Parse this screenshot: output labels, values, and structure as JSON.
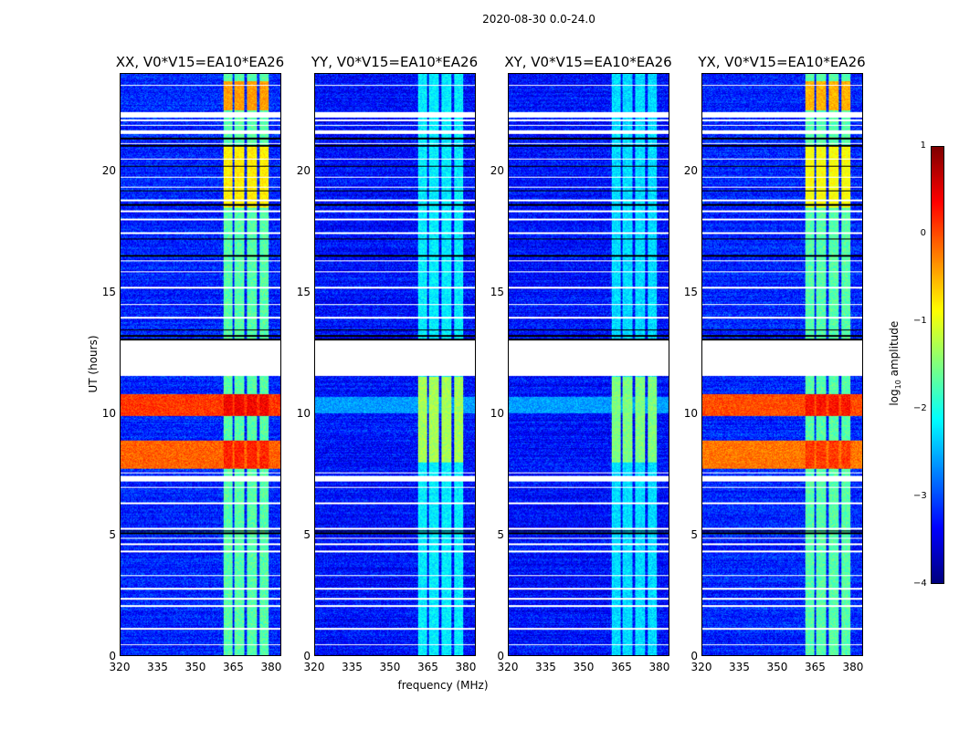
{
  "chart_data": {
    "type": "heatmap",
    "title": "2020-08-30 0.0-24.0",
    "xlabel": "frequency (MHz)",
    "ylabel": "UT (hours)",
    "xlim": [
      320,
      384
    ],
    "ylim": [
      0,
      24
    ],
    "xticks": [
      "320",
      "335",
      "350",
      "365",
      "380"
    ],
    "yticks": [
      "0",
      "5",
      "10",
      "15",
      "20"
    ],
    "colorbar": {
      "label": "log10 amplitude",
      "range": [
        -4,
        1
      ],
      "ticks": [
        "1",
        "0",
        "−1",
        "−2",
        "−3",
        "−4"
      ],
      "colormap": "jet"
    },
    "flagged_ranges_hours": [
      [
        11.55,
        13.0
      ],
      [
        7.2,
        7.4
      ],
      [
        22.2,
        22.45
      ],
      [
        21.55,
        21.7
      ]
    ],
    "flagged_lines_hours": [
      0.45,
      1.1,
      2.05,
      2.35,
      2.75,
      3.3,
      4.3,
      4.6,
      4.85,
      5.25,
      6.3,
      6.95,
      7.55,
      13.95,
      14.5,
      15.2,
      15.85,
      16.3,
      17.45,
      18.0,
      18.35,
      18.8,
      19.35,
      19.75,
      20.5,
      21.15,
      21.9,
      22.1,
      23.55
    ],
    "dark_lines_hours": [
      5.05,
      5.15,
      13.05,
      13.2,
      13.45,
      16.5,
      17.2,
      18.6,
      19.2,
      20.2,
      21.05,
      21.35
    ],
    "rfi_channels_mhz": [
      [
        361,
        364.5
      ],
      [
        365.5,
        369.5
      ],
      [
        370.5,
        374.5
      ],
      [
        375.5,
        379
      ]
    ],
    "panels": [
      {
        "title": "XX, V0*V15=EA10*EA26",
        "base": -3.2,
        "rfi": -1.7,
        "segments": [
          {
            "t": [
              7.7,
              8.9
            ],
            "level": 0.2,
            "broadband": true
          },
          {
            "t": [
              9.9,
              10.8
            ],
            "level": 0.4,
            "broadband": true
          },
          {
            "t": [
              18.5,
              21
            ],
            "level": -0.8,
            "broadband": false
          },
          {
            "t": [
              22.5,
              23.7
            ],
            "level": -0.4,
            "broadband": false
          }
        ]
      },
      {
        "title": "YY, V0*V15=EA10*EA26",
        "base": -3.3,
        "rfi": -2.2,
        "segments": [
          {
            "t": [
              8,
              11.5
            ],
            "level": -1.3,
            "broadband": false
          },
          {
            "t": [
              10,
              10.7
            ],
            "level": -2.3,
            "broadband": true
          }
        ]
      },
      {
        "title": "XY, V0*V15=EA10*EA26",
        "base": -3.3,
        "rfi": -2.3,
        "segments": [
          {
            "t": [
              8,
              11.5
            ],
            "level": -1.5,
            "broadband": false
          },
          {
            "t": [
              10,
              10.7
            ],
            "level": -2.3,
            "broadband": true
          }
        ]
      },
      {
        "title": "YX, V0*V15=EA10*EA26",
        "base": -3.2,
        "rfi": -1.7,
        "segments": [
          {
            "t": [
              7.7,
              8.9
            ],
            "level": 0.1,
            "broadband": true
          },
          {
            "t": [
              9.9,
              10.8
            ],
            "level": 0.3,
            "broadband": true
          },
          {
            "t": [
              18.5,
              21
            ],
            "level": -0.9,
            "broadband": false
          },
          {
            "t": [
              22.5,
              23.7
            ],
            "level": -0.5,
            "broadband": false
          }
        ]
      }
    ]
  }
}
